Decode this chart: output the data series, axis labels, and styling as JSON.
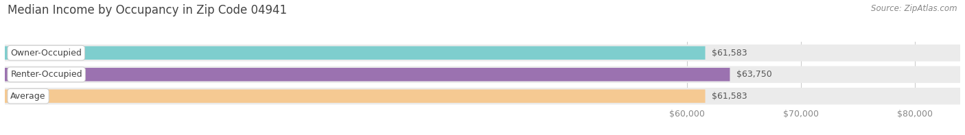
{
  "title": "Median Income by Occupancy in Zip Code 04941",
  "source": "Source: ZipAtlas.com",
  "categories": [
    "Owner-Occupied",
    "Renter-Occupied",
    "Average"
  ],
  "values": [
    61583,
    63750,
    61583
  ],
  "bar_colors": [
    "#7ecece",
    "#9b72b0",
    "#f5c992"
  ],
  "value_labels": [
    "$61,583",
    "$63,750",
    "$61,583"
  ],
  "x_ticks": [
    60000,
    70000,
    80000
  ],
  "x_tick_labels": [
    "$60,000",
    "$70,000",
    "$80,000"
  ],
  "xlim_left": 0,
  "xlim_right": 84000,
  "bar_height": 0.62,
  "bg_bar_color": "#ebebeb",
  "bg_bar_height": 0.78,
  "title_fontsize": 12,
  "source_fontsize": 8.5,
  "label_fontsize": 9,
  "value_fontsize": 9,
  "tick_fontsize": 9,
  "title_color": "#444444",
  "source_color": "#888888",
  "label_color": "#444444",
  "value_color": "#555555",
  "tick_color": "#888888",
  "grid_color": "#cccccc"
}
